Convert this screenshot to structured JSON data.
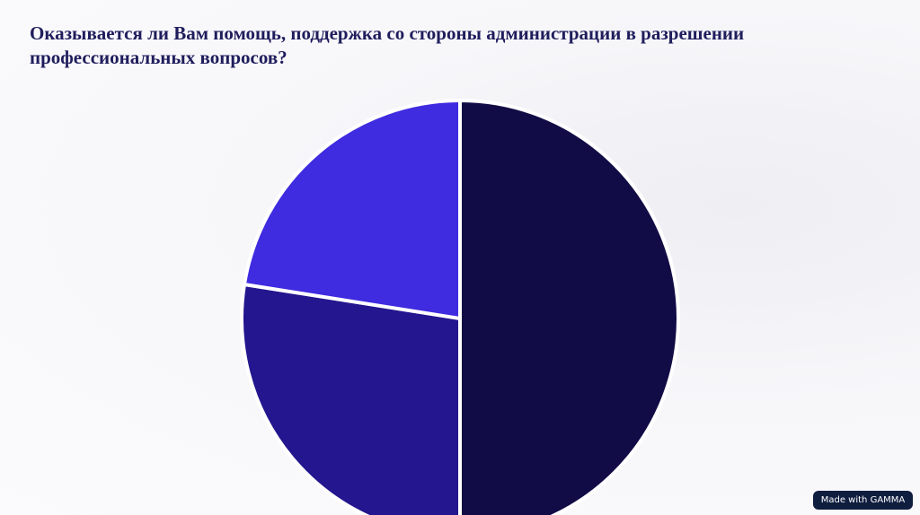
{
  "chart_data": {
    "type": "pie",
    "title": "Оказывается ли Вам помощь, поддержка со стороны администрации в разрешении профессиональных вопросов?",
    "values": [
      50,
      27.5,
      22.5
    ],
    "colors": [
      "#110c45",
      "#23168e",
      "#3f2be0"
    ]
  },
  "badge": "Made with GAMMA"
}
